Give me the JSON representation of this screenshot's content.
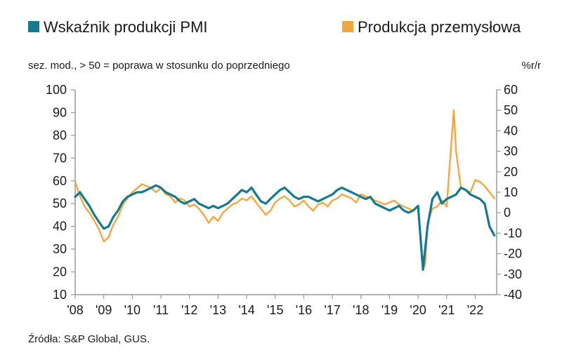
{
  "chart_data": {
    "type": "line",
    "legend": [
      "Wskaźnik produkcji PMI",
      "Produkcja przemysłowa"
    ],
    "left_axis_note": "sez. mod., > 50 = poprawa w stosunku do poprzedniego",
    "right_axis_note": "%r/r",
    "source": "Źródła:  S&P Global, GUS.",
    "x_ticks": [
      "'08",
      "'09",
      "'10",
      "'11",
      "'12",
      "'13",
      "'14",
      "'15",
      "'16",
      "'17",
      "'18",
      "'19",
      "'20",
      "'21",
      "'22"
    ],
    "y_left_ticks": [
      "100",
      "90",
      "80",
      "70",
      "60",
      "50",
      "40",
      "30",
      "20",
      "10"
    ],
    "y_right_ticks": [
      "60",
      "50",
      "40",
      "30",
      "20",
      "10",
      "0",
      "-10",
      "-20",
      "-30",
      "-40"
    ],
    "y_left_range": [
      10,
      100
    ],
    "y_right_range": [
      -40,
      60
    ],
    "x_range": [
      2008.0,
      2022.75
    ],
    "grid": false,
    "colors": {
      "pmi": "#137a8f",
      "production": "#f5a73b"
    },
    "series": [
      {
        "name": "Wskaźnik produkcji PMI",
        "axis": "left",
        "x": [
          2008.0,
          2008.17,
          2008.33,
          2008.5,
          2008.67,
          2008.83,
          2009.0,
          2009.17,
          2009.33,
          2009.5,
          2009.67,
          2009.83,
          2010.0,
          2010.17,
          2010.33,
          2010.5,
          2010.67,
          2010.83,
          2011.0,
          2011.17,
          2011.33,
          2011.5,
          2011.67,
          2011.83,
          2012.0,
          2012.17,
          2012.33,
          2012.5,
          2012.67,
          2012.83,
          2013.0,
          2013.17,
          2013.33,
          2013.5,
          2013.67,
          2013.83,
          2014.0,
          2014.17,
          2014.33,
          2014.5,
          2014.67,
          2014.83,
          2015.0,
          2015.17,
          2015.33,
          2015.5,
          2015.67,
          2015.83,
          2016.0,
          2016.17,
          2016.33,
          2016.5,
          2016.67,
          2016.83,
          2017.0,
          2017.17,
          2017.33,
          2017.5,
          2017.67,
          2017.83,
          2018.0,
          2018.17,
          2018.33,
          2018.5,
          2018.67,
          2018.83,
          2019.0,
          2019.17,
          2019.33,
          2019.5,
          2019.67,
          2019.83,
          2020.0,
          2020.17,
          2020.33,
          2020.5,
          2020.67,
          2020.83,
          2021.0,
          2021.17,
          2021.33,
          2021.5,
          2021.67,
          2021.83,
          2022.0,
          2022.17,
          2022.33,
          2022.5,
          2022.67
        ],
        "values": [
          53,
          55,
          52,
          49,
          45,
          42,
          39,
          40,
          44,
          47,
          51,
          53,
          54,
          55,
          55,
          56,
          57,
          58,
          57,
          55,
          54,
          53,
          51,
          50,
          51,
          52,
          50,
          49,
          48,
          49,
          48,
          49,
          50,
          52,
          54,
          56,
          55,
          57,
          54,
          51,
          50,
          52,
          54,
          56,
          57,
          55,
          53,
          52,
          53,
          53,
          52,
          51,
          52,
          53,
          54,
          56,
          57,
          56,
          55,
          54,
          53,
          52,
          53,
          50,
          49,
          48,
          47,
          48,
          49,
          47,
          46,
          47,
          49,
          21,
          40,
          52,
          55,
          50,
          52,
          53,
          54,
          57,
          56,
          54,
          53,
          52,
          50,
          40,
          36
        ]
      },
      {
        "name": "Produkcja przemysłowa",
        "axis": "right",
        "x": [
          2008.0,
          2008.17,
          2008.33,
          2008.5,
          2008.67,
          2008.83,
          2009.0,
          2009.17,
          2009.33,
          2009.5,
          2009.67,
          2009.83,
          2010.0,
          2010.17,
          2010.33,
          2010.5,
          2010.67,
          2010.83,
          2011.0,
          2011.17,
          2011.33,
          2011.5,
          2011.67,
          2011.83,
          2012.0,
          2012.17,
          2012.33,
          2012.5,
          2012.67,
          2012.83,
          2013.0,
          2013.17,
          2013.33,
          2013.5,
          2013.67,
          2013.83,
          2014.0,
          2014.17,
          2014.33,
          2014.5,
          2014.67,
          2014.83,
          2015.0,
          2015.17,
          2015.33,
          2015.5,
          2015.67,
          2015.83,
          2016.0,
          2016.17,
          2016.33,
          2016.5,
          2016.67,
          2016.83,
          2017.0,
          2017.17,
          2017.33,
          2017.5,
          2017.67,
          2017.83,
          2018.0,
          2018.17,
          2018.33,
          2018.5,
          2018.67,
          2018.83,
          2019.0,
          2019.17,
          2019.33,
          2019.5,
          2019.67,
          2019.83,
          2020.0,
          2020.17,
          2020.25,
          2020.33,
          2020.5,
          2020.67,
          2020.83,
          2021.0,
          2021.17,
          2021.25,
          2021.33,
          2021.5,
          2021.67,
          2021.83,
          2022.0,
          2022.17,
          2022.33,
          2022.5,
          2022.67
        ],
        "values": [
          15,
          8,
          3,
          0,
          -4,
          -8,
          -14,
          -12,
          -6,
          -2,
          4,
          7,
          10,
          12,
          14,
          13,
          12,
          10,
          12,
          9,
          8,
          5,
          7,
          6,
          3,
          4,
          2,
          -1,
          -5,
          -2,
          -4,
          0,
          2,
          4,
          5,
          7,
          6,
          8,
          5,
          2,
          -1,
          1,
          5,
          7,
          8,
          6,
          3,
          4,
          6,
          3,
          1,
          4,
          5,
          3,
          6,
          7,
          9,
          8,
          7,
          5,
          9,
          8,
          7,
          6,
          5,
          4,
          5,
          6,
          4,
          3,
          2,
          1,
          3,
          -28,
          -25,
          -5,
          2,
          3,
          6,
          3,
          35,
          50,
          30,
          12,
          11,
          10,
          16,
          15,
          13,
          10,
          7
        ]
      }
    ]
  }
}
